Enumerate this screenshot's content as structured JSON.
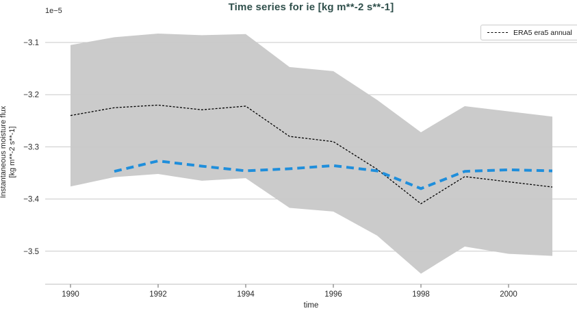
{
  "chart_data": {
    "type": "line",
    "title": "Time series for ie [kg m**-2 s**-1]",
    "xlabel": "time",
    "ylabel_line1": "Instantaneous moisture flux",
    "ylabel_line2": "[kg m**-2 s**-1]",
    "offset_text": "1e−5",
    "units_scale": "1e-5",
    "x": [
      1990,
      1991,
      1992,
      1993,
      1994,
      1995,
      1996,
      1997,
      1998,
      1999,
      2000,
      2001
    ],
    "series": [
      {
        "name": "ERA5 era5 annual",
        "style": "thin-dashed",
        "color": "#000000",
        "values": [
          -3.24,
          -3.225,
          -3.22,
          -3.229,
          -3.222,
          -3.28,
          -3.29,
          -3.343,
          -3.409,
          -3.357,
          -3.367,
          -3.377
        ]
      },
      {
        "name": "blue dashed (unlabeled)",
        "style": "thick-dashed",
        "color": "#1f8edb",
        "values": [
          null,
          -3.347,
          -3.327,
          -3.337,
          -3.346,
          -3.342,
          -3.336,
          -3.346,
          -3.38,
          -3.347,
          -3.344,
          -3.346
        ]
      }
    ],
    "band": {
      "name": "uncertainty band",
      "color": "#cbcbcb",
      "top": [
        -3.105,
        -3.09,
        -3.083,
        -3.086,
        -3.084,
        -3.147,
        -3.155,
        -3.21,
        -3.272,
        -3.222,
        -3.232,
        -3.242
      ],
      "bottom": [
        -3.376,
        -3.358,
        -3.352,
        -3.365,
        -3.36,
        -3.417,
        -3.424,
        -3.47,
        -3.543,
        -3.491,
        -3.505,
        -3.509
      ]
    },
    "xticks": {
      "values": [
        1990,
        1992,
        1994,
        1996,
        1998,
        2000
      ],
      "labels": [
        "1990",
        "1992",
        "1994",
        "1996",
        "1998",
        "2000"
      ]
    },
    "yticks": {
      "values": [
        -3.1,
        -3.2,
        -3.3,
        -3.4,
        -3.5
      ],
      "labels": [
        "−3.1",
        "−3.2",
        "−3.3",
        "−3.4",
        "−3.5"
      ]
    },
    "xlim": [
      1989.42,
      2001.56
    ],
    "ylim": [
      -3.563,
      -3.059
    ],
    "grid": "horizontal-only",
    "legend": {
      "position": "upper right",
      "entries": [
        {
          "label": "ERA5 era5 annual",
          "style": "thin-dashed",
          "color": "#000000"
        }
      ]
    }
  },
  "colors": {
    "title": "#30504c",
    "band": "#cbcbcb",
    "blue_line": "#1f8edb",
    "black_line": "#000000",
    "gridline": "#c9c9c9",
    "spine": "#c9c9c9",
    "tick_mark": "#666666",
    "tick_label": "#2b2b2b"
  }
}
